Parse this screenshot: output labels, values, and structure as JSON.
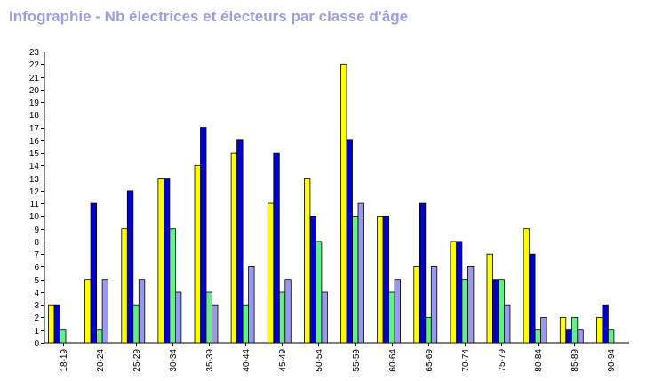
{
  "chart_data": {
    "type": "bar",
    "title": "Infographie - Nb électrices et électeurs par classe d'âge",
    "categories": [
      "18-19",
      "20-24",
      "25-29",
      "30-34",
      "35-39",
      "40-44",
      "45-49",
      "50-54",
      "55-59",
      "60-64",
      "65-69",
      "70-74",
      "75-79",
      "80-84",
      "85-89",
      "90-94"
    ],
    "series": [
      {
        "color": "#ffff00",
        "values": [
          3,
          5,
          9,
          13,
          14,
          15,
          11,
          13,
          22,
          10,
          6,
          8,
          7,
          9,
          2,
          2
        ]
      },
      {
        "color": "#0000cc",
        "values": [
          3,
          11,
          12,
          13,
          17,
          16,
          15,
          10,
          16,
          10,
          11,
          8,
          5,
          7,
          1,
          3
        ]
      },
      {
        "color": "#66ee88",
        "values": [
          1,
          1,
          3,
          9,
          4,
          3,
          4,
          8,
          10,
          4,
          2,
          5,
          5,
          1,
          2,
          1
        ]
      },
      {
        "color": "#9999ee",
        "values": [
          0,
          5,
          5,
          4,
          3,
          6,
          5,
          4,
          11,
          5,
          6,
          6,
          3,
          2,
          1,
          0
        ]
      }
    ],
    "ylim": [
      0,
      23
    ],
    "yticks": [
      0,
      1,
      2,
      3,
      4,
      5,
      6,
      7,
      8,
      9,
      10,
      11,
      12,
      13,
      14,
      15,
      16,
      17,
      18,
      19,
      20,
      21,
      22,
      23
    ],
    "xlabel": "",
    "ylabel": "",
    "grid": false,
    "legend": "none"
  }
}
